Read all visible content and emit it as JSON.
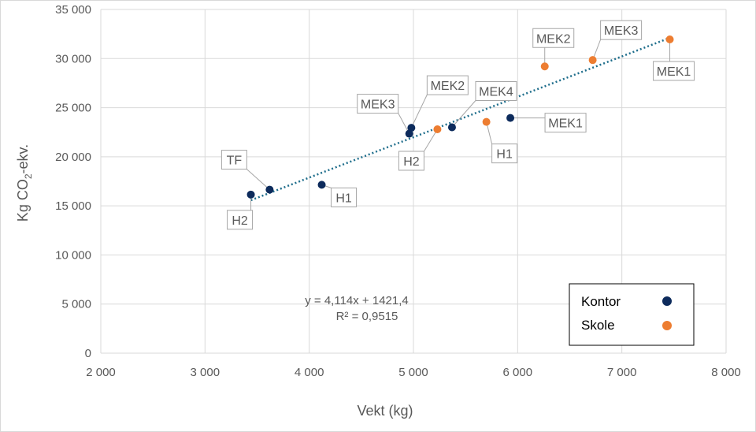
{
  "chart_data": {
    "type": "scatter",
    "xlabel": "Vekt (kg)",
    "ylabel_main": "Kg CO",
    "ylabel_sub": "2",
    "ylabel_tail": "-ekv.",
    "xlim": [
      2000,
      8000
    ],
    "ylim": [
      0,
      35000
    ],
    "x_ticks": [
      2000,
      3000,
      4000,
      5000,
      6000,
      7000,
      8000
    ],
    "x_tick_labels": [
      "2 000",
      "3 000",
      "4 000",
      "5 000",
      "6 000",
      "7 000",
      "8 000"
    ],
    "y_ticks": [
      0,
      5000,
      10000,
      15000,
      20000,
      25000,
      30000,
      35000
    ],
    "y_tick_labels": [
      "0",
      "5 000",
      "10 000",
      "15 000",
      "20 000",
      "25 000",
      "30 000",
      "35 000"
    ],
    "grid": true,
    "legend_position": "bottom-right",
    "series": [
      {
        "name": "Kontor",
        "color": "#0d2b5c",
        "points": [
          {
            "label": "H2",
            "x": 3440,
            "y": 16150
          },
          {
            "label": "TF",
            "x": 3620,
            "y": 16650
          },
          {
            "label": "H1",
            "x": 4120,
            "y": 17150
          },
          {
            "label": "MEK3",
            "x": 4960,
            "y": 22350
          },
          {
            "label": "MEK2",
            "x": 4980,
            "y": 22950
          },
          {
            "label": "MEK4",
            "x": 5370,
            "y": 23000
          },
          {
            "label": "MEK1",
            "x": 5930,
            "y": 23950
          }
        ]
      },
      {
        "name": "Skole",
        "color": "#ed7d31",
        "points": [
          {
            "label": "H2",
            "x": 5230,
            "y": 22800
          },
          {
            "label": "H1",
            "x": 5700,
            "y": 23550
          },
          {
            "label": "MEK2",
            "x": 6260,
            "y": 29200
          },
          {
            "label": "MEK3",
            "x": 6720,
            "y": 29850
          },
          {
            "label": "MEK1",
            "x": 7460,
            "y": 31950
          }
        ]
      }
    ],
    "trendline": {
      "slope": 4.114,
      "intercept": 1421.4,
      "x_range": [
        3440,
        7460
      ],
      "color": "#1f6e8c",
      "equation": "y = 4,114x + 1421,4",
      "r2": "R² = 0,9515"
    },
    "legend": [
      {
        "name": "Kontor",
        "color": "#0d2b5c"
      },
      {
        "name": "Skole",
        "color": "#ed7d31"
      }
    ]
  }
}
